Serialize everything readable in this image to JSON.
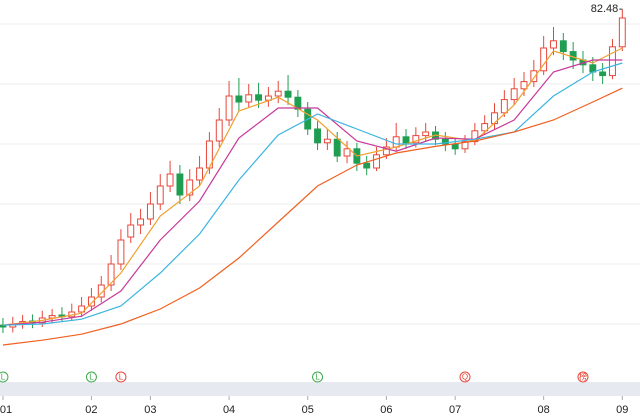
{
  "chart_data": {
    "type": "candlestick",
    "up_color": "#e8463a",
    "down_color": "#1f9e52",
    "open": [
      29.8,
      29.5,
      30,
      30.5,
      30.2,
      31,
      31.5,
      31.2,
      32,
      33,
      34.5,
      36.5,
      40,
      44.5,
      46.5,
      47.5,
      50,
      53,
      55,
      51.5,
      54,
      56,
      60.5,
      64,
      68,
      67,
      68.2,
      67.3,
      68,
      68.8,
      67.8,
      65.8,
      62.5,
      60.2,
      60.8,
      58,
      59.2,
      56.8,
      56,
      58.2,
      59.5,
      61.2,
      60.2,
      61.4,
      62,
      60.8,
      60,
      59.2,
      60.4,
      62.2,
      63.4,
      65.2,
      67.4,
      69.2,
      70.4,
      72.2,
      76,
      77.2,
      75.4,
      74,
      73.2,
      72,
      71.4,
      76.2
    ],
    "high": [
      31,
      31.2,
      31.5,
      31.6,
      32.2,
      32.5,
      32.8,
      33.4,
      34.5,
      36,
      38,
      41.5,
      45.8,
      48.5,
      49.2,
      52,
      55,
      57.2,
      56.5,
      55.8,
      58,
      62,
      66,
      70.5,
      71,
      70,
      70.2,
      69.5,
      70.5,
      71.5,
      69,
      67,
      63.8,
      62.5,
      62,
      60.5,
      60.2,
      58,
      59.5,
      61,
      63.5,
      62.5,
      62.8,
      63.5,
      63,
      62,
      61,
      61.5,
      63.5,
      64.8,
      66.8,
      69,
      71,
      72,
      74,
      78,
      79.5,
      78.5,
      77,
      75.5,
      74.5,
      73.5,
      77.5,
      82.48
    ],
    "low": [
      28.5,
      28.6,
      29.2,
      29.3,
      29.5,
      30.2,
      30.4,
      30.5,
      31.2,
      32.2,
      33.6,
      35.5,
      39,
      43.5,
      45,
      46.5,
      49,
      52,
      50,
      50.5,
      53,
      55,
      59.5,
      63,
      65.5,
      66,
      66,
      66.2,
      66.8,
      66.5,
      64.5,
      61.5,
      59,
      59,
      57,
      56.8,
      55.5,
      54.8,
      55.5,
      57.5,
      58.8,
      59.2,
      59.4,
      60.5,
      59.8,
      58.8,
      58.2,
      58.5,
      59.8,
      61.5,
      62.5,
      64.5,
      66.5,
      68,
      69.5,
      71.5,
      74.8,
      74,
      72.5,
      71.8,
      70.5,
      70,
      70.8,
      75.5
    ],
    "close": [
      29.5,
      30,
      30.4,
      30.2,
      31,
      31.4,
      31.2,
      32,
      33,
      34.5,
      36.5,
      40,
      44,
      46.5,
      47.5,
      50,
      53,
      55,
      51.5,
      54,
      56,
      60.5,
      64,
      68,
      67,
      68.2,
      67.3,
      68,
      68.8,
      67.8,
      65.8,
      62.5,
      60.2,
      60.8,
      58,
      59.2,
      56.8,
      56,
      58.2,
      59.5,
      61.2,
      60.2,
      61.4,
      62,
      60.8,
      60,
      59.2,
      60.4,
      62.2,
      63.4,
      65.2,
      67.4,
      69.2,
      70.4,
      72.2,
      76,
      77.2,
      75.4,
      74,
      73.2,
      72,
      71.4,
      76.2,
      81
    ],
    "series": [
      {
        "color": "#f0a030",
        "x": [
          0,
          4,
          8,
          12,
          16,
          20,
          24,
          28,
          32,
          36,
          40,
          44,
          48,
          52,
          56,
          60,
          63
        ],
        "values": [
          29.8,
          30.6,
          31.8,
          38.5,
          48,
          53,
          65.5,
          67.8,
          64,
          58,
          59.5,
          61.5,
          60.5,
          66.5,
          75.5,
          73.5,
          76
        ]
      },
      {
        "color": "#c8389a",
        "x": [
          0,
          4,
          8,
          12,
          16,
          20,
          24,
          28,
          32,
          36,
          40,
          44,
          48,
          52,
          56,
          60,
          63
        ],
        "values": [
          29.8,
          30.3,
          31.3,
          35.5,
          44,
          50.5,
          61,
          66,
          66,
          60.5,
          58.8,
          61,
          60.8,
          64,
          72,
          74,
          74
        ]
      },
      {
        "color": "#3cb4e0",
        "x": [
          0,
          4,
          8,
          12,
          16,
          20,
          24,
          28,
          32,
          36,
          40,
          44,
          48,
          52,
          56,
          60,
          63
        ],
        "values": [
          29.8,
          30,
          30.8,
          33,
          38.5,
          45,
          54,
          61.5,
          65,
          62.5,
          60,
          60,
          60.8,
          62,
          68,
          72,
          73.5
        ]
      },
      {
        "color": "#f06020",
        "x": [
          0,
          4,
          8,
          12,
          16,
          20,
          24,
          28,
          32,
          36,
          40,
          44,
          48,
          52,
          56,
          60,
          63
        ],
        "values": [
          26.5,
          27.3,
          28.3,
          30,
          32.5,
          36,
          41,
          47,
          53,
          56.5,
          58.5,
          59.6,
          60.5,
          62,
          64,
          67,
          69.3
        ]
      }
    ],
    "xlim": [
      -0.3,
      64.8
    ],
    "ylim": [
      23,
      84
    ],
    "yticks": [
      30,
      40,
      50,
      60,
      70,
      80
    ],
    "grid": true,
    "xticks": [
      {
        "value": 0,
        "label": "01"
      },
      {
        "value": 9,
        "label": "02"
      },
      {
        "value": 15,
        "label": "03"
      },
      {
        "value": 23,
        "label": "04"
      },
      {
        "value": 31,
        "label": "05"
      },
      {
        "value": 39,
        "label": "06"
      },
      {
        "value": 46,
        "label": "07"
      },
      {
        "value": 55,
        "label": "08"
      },
      {
        "value": 63,
        "label": "09"
      }
    ],
    "events": [
      {
        "x": 0,
        "label": "L",
        "color": "#3cab4a"
      },
      {
        "x": 9,
        "label": "L",
        "color": "#3cab4a"
      },
      {
        "x": 12,
        "label": "L",
        "color": "#e8463a"
      },
      {
        "x": 32,
        "label": "L",
        "color": "#3cab4a"
      },
      {
        "x": 47,
        "label": "Q",
        "color": "#e8463a"
      },
      {
        "x": 59,
        "label": "榜",
        "color": "#e8463a"
      }
    ]
  }
}
